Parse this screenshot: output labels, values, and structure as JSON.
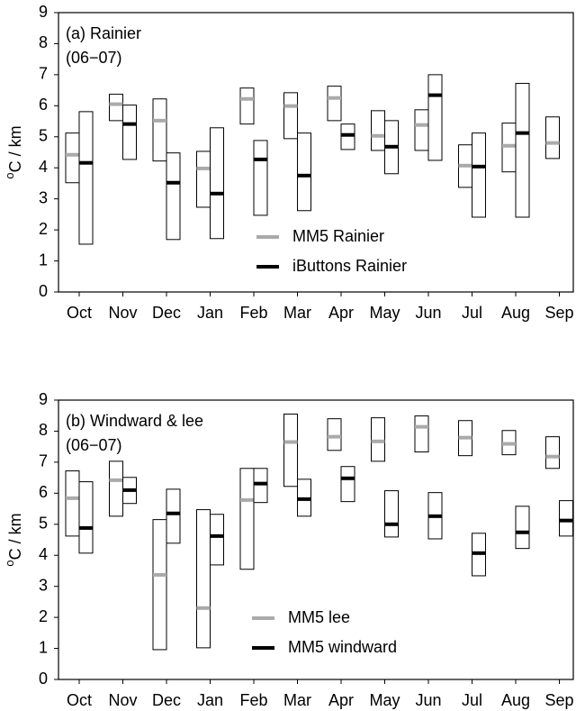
{
  "chart_data": [
    {
      "type": "range",
      "annotation": [
        "(a) Rainier",
        "(06−07)"
      ],
      "ylabel_sup": "o",
      "ylabel": "C / km",
      "categories": [
        "Oct",
        "Nov",
        "Dec",
        "Jan",
        "Feb",
        "Mar",
        "Apr",
        "May",
        "Jun",
        "Jul",
        "Aug",
        "Sep"
      ],
      "ylim": [
        0,
        9
      ],
      "yticks": [
        0,
        1,
        2,
        3,
        4,
        5,
        6,
        7,
        8,
        9
      ],
      "legend": "lower-center",
      "series": [
        {
          "name": "MM5 Rainier",
          "color": "#aaaaaa",
          "low": [
            3.52,
            5.52,
            4.22,
            2.73,
            5.41,
            4.94,
            5.52,
            4.56,
            4.56,
            3.37,
            3.87,
            4.3
          ],
          "high": [
            5.12,
            6.37,
            6.22,
            4.53,
            6.57,
            6.42,
            6.63,
            5.84,
            5.87,
            4.74,
            5.44,
            5.64
          ],
          "mid": [
            4.42,
            6.05,
            5.52,
            3.98,
            6.22,
            5.99,
            6.25,
            5.03,
            5.38,
            4.07,
            4.71,
            4.8
          ]
        },
        {
          "name": "iButtons Rainier",
          "color": "#000000",
          "low": [
            1.54,
            4.27,
            1.69,
            1.72,
            2.47,
            2.62,
            4.59,
            3.81,
            4.24,
            2.41,
            2.41,
            null
          ],
          "high": [
            5.81,
            6.02,
            4.48,
            5.29,
            4.88,
            5.12,
            5.41,
            5.52,
            7.0,
            5.12,
            6.72,
            null
          ],
          "mid": [
            4.16,
            5.41,
            3.52,
            3.17,
            4.27,
            3.75,
            5.06,
            4.68,
            6.34,
            4.04,
            5.12,
            null
          ]
        }
      ]
    },
    {
      "type": "range",
      "annotation": [
        "(b) Windward & lee",
        "(06−07)"
      ],
      "ylabel_sup": "o",
      "ylabel": "C / km",
      "categories": [
        "Oct",
        "Nov",
        "Dec",
        "Jan",
        "Feb",
        "Mar",
        "Apr",
        "May",
        "Jun",
        "Jul",
        "Aug",
        "Sep"
      ],
      "ylim": [
        0,
        9
      ],
      "yticks": [
        0,
        1,
        2,
        3,
        4,
        5,
        6,
        7,
        8,
        9
      ],
      "legend": "lower-center",
      "series": [
        {
          "name": "MM5 lee",
          "color": "#aaaaaa",
          "low": [
            4.62,
            5.26,
            0.96,
            1.02,
            3.55,
            6.22,
            7.38,
            7.03,
            7.33,
            7.21,
            7.24,
            6.8
          ],
          "high": [
            6.72,
            7.03,
            5.15,
            5.47,
            6.8,
            8.55,
            8.4,
            8.43,
            8.49,
            8.34,
            8.02,
            7.82
          ],
          "mid": [
            5.84,
            6.42,
            3.37,
            2.3,
            5.78,
            7.65,
            7.82,
            7.67,
            8.14,
            7.79,
            7.59,
            7.18
          ]
        },
        {
          "name": "MM5 windward",
          "color": "#000000",
          "low": [
            4.07,
            5.67,
            4.39,
            3.69,
            5.7,
            5.26,
            5.73,
            4.59,
            4.53,
            3.34,
            4.22,
            4.62
          ],
          "high": [
            6.37,
            6.51,
            6.13,
            5.32,
            6.8,
            6.45,
            6.86,
            6.08,
            6.02,
            4.71,
            5.58,
            5.76
          ],
          "mid": [
            4.88,
            6.1,
            5.35,
            4.62,
            6.31,
            5.81,
            6.48,
            5.0,
            5.26,
            4.07,
            4.74,
            5.12
          ]
        }
      ]
    }
  ]
}
